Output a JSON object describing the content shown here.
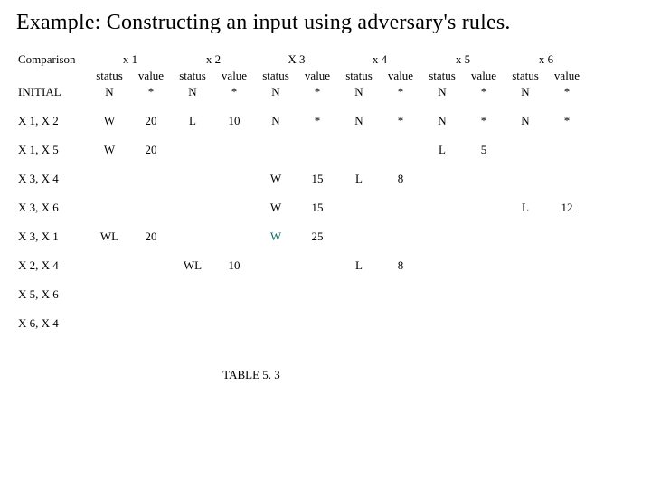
{
  "title": "Example: Constructing an input using adversary's rules.",
  "caption": "TABLE 5. 3",
  "header": {
    "comparison": "Comparison",
    "cols": [
      "x 1",
      "x 2",
      "X 3",
      "x 4",
      "x 5",
      "x 6"
    ],
    "status": "status",
    "value": "value"
  },
  "rows": [
    {
      "label": "INITIAL",
      "cells": [
        "N",
        "*",
        "N",
        "*",
        "N",
        "*",
        "N",
        "*",
        "N",
        "*",
        "N",
        "*"
      ]
    },
    {
      "label": "X 1, X 2",
      "cells": [
        "W",
        "20",
        "L",
        "10",
        "N",
        "*",
        "N",
        "*",
        "N",
        "*",
        "N",
        "*"
      ]
    },
    {
      "label": "X 1, X 5",
      "cells": [
        "W",
        "20",
        "",
        "",
        "",
        "",
        "",
        "",
        "L",
        "5",
        "",
        ""
      ]
    },
    {
      "label": "X 3, X 4",
      "cells": [
        "",
        "",
        "",
        "",
        "W",
        "15",
        "L",
        "8",
        "",
        "",
        "",
        ""
      ]
    },
    {
      "label": "X 3, X 6",
      "cells": [
        "",
        "",
        "",
        "",
        "W",
        "15",
        "",
        "",
        "",
        "",
        "L",
        "12"
      ]
    },
    {
      "label": "X 3, X 1",
      "cells": [
        "WL",
        "20",
        "",
        "",
        "W",
        "25",
        "",
        "",
        "",
        "",
        "",
        ""
      ],
      "hi": [
        4
      ]
    },
    {
      "label": "X 2, X 4",
      "cells": [
        "",
        "",
        "WL",
        "10",
        "",
        "",
        "L",
        "8",
        "",
        "",
        "",
        ""
      ]
    },
    {
      "label": "X 5, X 6",
      "cells": [
        "",
        "",
        "",
        "",
        "",
        "",
        "",
        "",
        "",
        "",
        "",
        ""
      ]
    },
    {
      "label": "X 6, X 4",
      "cells": [
        "",
        "",
        "",
        "",
        "",
        "",
        "",
        "",
        "",
        "",
        "",
        ""
      ]
    }
  ]
}
